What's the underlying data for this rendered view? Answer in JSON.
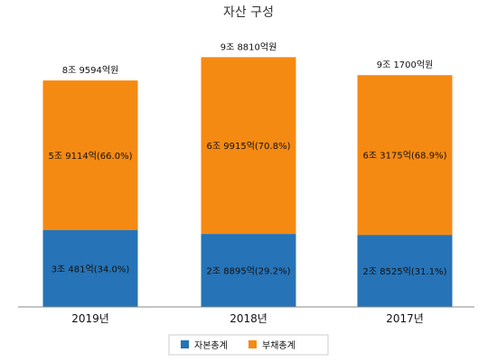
{
  "chart_data": {
    "type": "bar",
    "stacked": true,
    "title": "자산 구성",
    "categories": [
      "2019년",
      "2018년",
      "2017년"
    ],
    "totals": [
      "8조 9594억원",
      "9조 8810억원",
      "9조 1700억원"
    ],
    "series": [
      {
        "name": "자본총계",
        "color": "#2673b7",
        "values": [
          30481,
          28895,
          28525
        ],
        "labels": [
          "3조 481억(34.0%)",
          "2조 8895억(29.2%)",
          "2조 8525억(31.1%)"
        ]
      },
      {
        "name": "부채총계",
        "color": "#f58a12",
        "values": [
          59114,
          69915,
          63175
        ],
        "labels": [
          "5조 9114억(66.0%)",
          "6조 9915억(70.8%)",
          "6조 3175억(68.9%)"
        ]
      }
    ],
    "ylim": [
      0,
      100000
    ],
    "grid": false,
    "legend": "bottom"
  }
}
